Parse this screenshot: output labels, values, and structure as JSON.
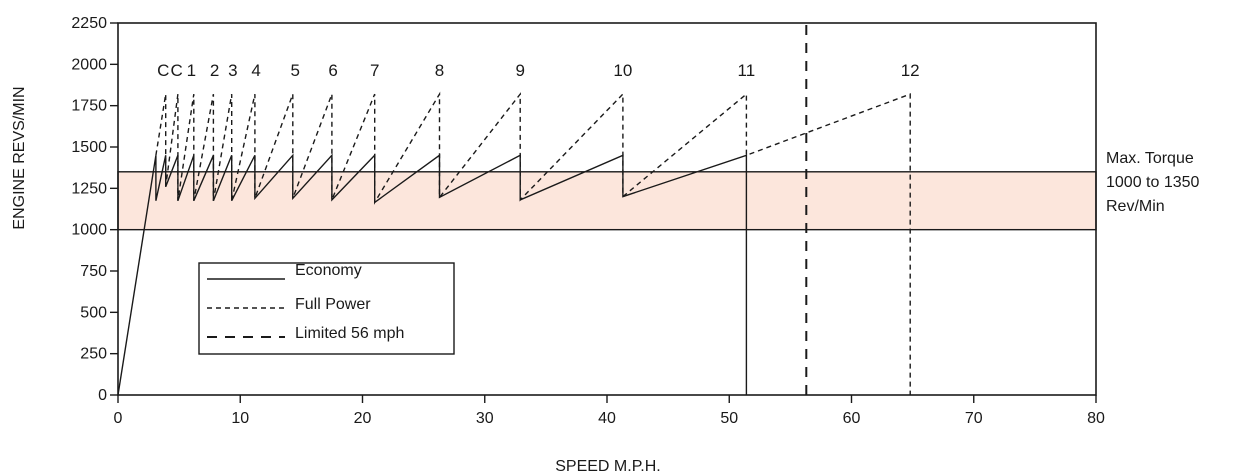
{
  "chart_data": {
    "type": "line",
    "xlabel": "SPEED M.P.H.",
    "ylabel": "ENGINE REVS/MIN",
    "xlim": [
      0,
      80
    ],
    "ylim": [
      0,
      2250
    ],
    "xticks": [
      0,
      10,
      20,
      30,
      40,
      50,
      60,
      70,
      80
    ],
    "yticks": [
      0,
      250,
      500,
      750,
      1000,
      1250,
      1500,
      1750,
      2000,
      2250
    ],
    "grid": false,
    "legend_position": "lower-left",
    "colors": {
      "band_fill": "#fce6dc",
      "line": "#1a1a1a"
    },
    "band": {
      "y_from": 1000,
      "y_to": 1350,
      "label_lines": [
        "Max. Torque",
        "1000 to 1350",
        "Rev/Min"
      ]
    },
    "gear_labels": [
      {
        "text": "C",
        "x": 3.7
      },
      {
        "text": "C",
        "x": 4.8
      },
      {
        "text": "1",
        "x": 6.0
      },
      {
        "text": "2",
        "x": 7.9
      },
      {
        "text": "3",
        "x": 9.4
      },
      {
        "text": "4",
        "x": 11.3
      },
      {
        "text": "5",
        "x": 14.5
      },
      {
        "text": "6",
        "x": 17.6
      },
      {
        "text": "7",
        "x": 21.0
      },
      {
        "text": "8",
        "x": 26.3
      },
      {
        "text": "9",
        "x": 32.9
      },
      {
        "text": "10",
        "x": 41.3
      },
      {
        "text": "11",
        "x": 51.4
      },
      {
        "text": "12",
        "x": 64.8
      }
    ],
    "series": [
      {
        "name": "Economy",
        "dash": "solid",
        "points": [
          [
            0,
            0
          ],
          [
            3.1,
            1450
          ],
          [
            3.1,
            1175
          ],
          [
            3.9,
            1450
          ],
          [
            3.9,
            1260
          ],
          [
            4.9,
            1450
          ],
          [
            4.9,
            1175
          ],
          [
            6.2,
            1450
          ],
          [
            6.2,
            1175
          ],
          [
            7.8,
            1450
          ],
          [
            7.8,
            1175
          ],
          [
            9.3,
            1450
          ],
          [
            9.3,
            1175
          ],
          [
            11.2,
            1450
          ],
          [
            11.2,
            1190
          ],
          [
            14.3,
            1450
          ],
          [
            14.3,
            1190
          ],
          [
            17.5,
            1450
          ],
          [
            17.5,
            1180
          ],
          [
            21.0,
            1450
          ],
          [
            21.0,
            1165
          ],
          [
            26.3,
            1450
          ],
          [
            26.3,
            1195
          ],
          [
            32.9,
            1450
          ],
          [
            32.9,
            1180
          ],
          [
            41.3,
            1450
          ],
          [
            41.3,
            1200
          ],
          [
            51.4,
            1450
          ],
          [
            51.4,
            0
          ]
        ]
      },
      {
        "name": "Full Power",
        "dash": "short",
        "points": [
          [
            3.1,
            1450
          ],
          [
            3.9,
            1820
          ],
          [
            3.9,
            1260
          ],
          [
            4.9,
            1820
          ],
          [
            4.9,
            1175
          ],
          [
            6.2,
            1820
          ],
          [
            6.2,
            1175
          ],
          [
            7.8,
            1820
          ],
          [
            7.8,
            1175
          ],
          [
            9.3,
            1820
          ],
          [
            9.3,
            1175
          ],
          [
            11.2,
            1820
          ],
          [
            11.2,
            1190
          ],
          [
            14.3,
            1820
          ],
          [
            14.3,
            1190
          ],
          [
            17.5,
            1820
          ],
          [
            17.5,
            1180
          ],
          [
            21.0,
            1820
          ],
          [
            21.0,
            1165
          ],
          [
            26.3,
            1820
          ],
          [
            26.3,
            1195
          ],
          [
            32.9,
            1820
          ],
          [
            32.9,
            1180
          ],
          [
            41.3,
            1820
          ],
          [
            41.3,
            1200
          ],
          [
            51.4,
            1820
          ],
          [
            51.4,
            1450
          ],
          [
            64.8,
            1820
          ],
          [
            64.8,
            0
          ]
        ]
      },
      {
        "name": "Limited 56 mph",
        "dash": "long",
        "points": [
          [
            56.3,
            0
          ],
          [
            56.3,
            2250
          ]
        ]
      }
    ]
  }
}
